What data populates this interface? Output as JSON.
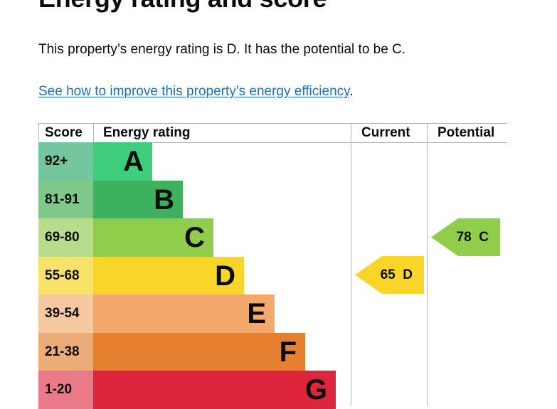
{
  "heading": "Energy rating and score",
  "summary": "This property’s energy rating is D. It has the potential to be C.",
  "improve_link": {
    "text": "See how to improve this property’s energy efficiency",
    "suffix": "."
  },
  "table": {
    "headers": {
      "score": "Score",
      "rating": "Energy rating",
      "current": "Current",
      "potential": "Potential"
    },
    "bands": [
      {
        "score": "92+",
        "letter": "A",
        "bar_color": "#3ecc7d",
        "score_color": "#74c69f"
      },
      {
        "score": "81-91",
        "letter": "B",
        "bar_color": "#3db15e",
        "score_color": "#80c889"
      },
      {
        "score": "69-80",
        "letter": "C",
        "bar_color": "#90cd4b",
        "score_color": "#b7dc8c"
      },
      {
        "score": "55-68",
        "letter": "D",
        "bar_color": "#f9d52a",
        "score_color": "#f8e26a"
      },
      {
        "score": "39-54",
        "letter": "E",
        "bar_color": "#f3a96b",
        "score_color": "#f5c89f"
      },
      {
        "score": "21-38",
        "letter": "F",
        "bar_color": "#e4802f",
        "score_color": "#ecac78"
      },
      {
        "score": "1-20",
        "letter": "G",
        "bar_color": "#dd263c",
        "score_color": "#ea7a88"
      }
    ],
    "current": {
      "score": "65",
      "letter": "D",
      "color": "#f9d52a"
    },
    "potential": {
      "score": "78",
      "letter": "C",
      "color": "#90cd4b"
    }
  }
}
